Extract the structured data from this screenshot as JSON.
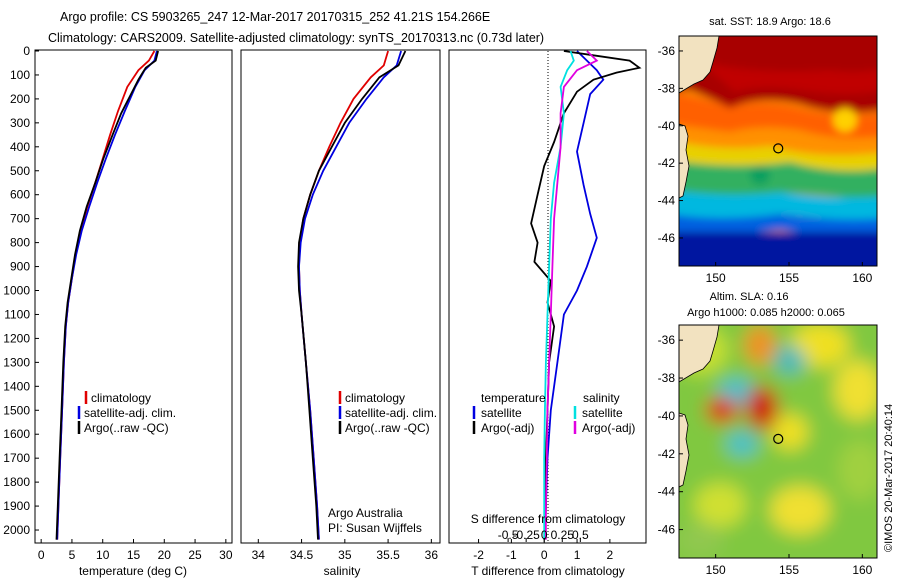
{
  "header": {
    "line1": "Argo profile: CS 5903265_247 12-Mar-2017 20170315_252 41.21S 154.266E",
    "line2": "Climatology: CARS2009. Satellite-adjusted climatology: synTS_20170313.nc (0.73d later)"
  },
  "colors": {
    "climatology": "#e00000",
    "satellite": "#0000e0",
    "argo": "#000000",
    "sat_s": "#00e0e0",
    "argo_adj_s": "#e000e0"
  },
  "chart_data": [
    {
      "type": "line",
      "id": "temperature",
      "xlabel": "temperature (deg C)",
      "ylabel": "",
      "xlim": [
        -1,
        31
      ],
      "ylim": [
        2050,
        0
      ],
      "xticks": [
        "0",
        "5",
        "10",
        "15",
        "20",
        "25",
        "30"
      ],
      "yticks": [
        "0",
        "100",
        "200",
        "300",
        "400",
        "500",
        "600",
        "700",
        "800",
        "900",
        "1000",
        "1100",
        "1200",
        "1300",
        "1400",
        "1500",
        "1600",
        "1700",
        "1800",
        "1900",
        "2000"
      ],
      "legend": [
        "climatology",
        "satellite-adj. clim.",
        "Argo(..raw -QC)"
      ],
      "series": [
        {
          "name": "climatology",
          "color": "#e00000",
          "points": [
            [
              18.4,
              0
            ],
            [
              17.5,
              40
            ],
            [
              15.8,
              80
            ],
            [
              14.0,
              150
            ],
            [
              12.5,
              250
            ],
            [
              11.2,
              350
            ],
            [
              10.0,
              450
            ],
            [
              8.8,
              550
            ],
            [
              7.5,
              650
            ],
            [
              6.4,
              750
            ],
            [
              5.6,
              850
            ],
            [
              5.0,
              950
            ],
            [
              4.4,
              1050
            ],
            [
              4.0,
              1150
            ],
            [
              3.7,
              1300
            ],
            [
              3.4,
              1500
            ],
            [
              3.1,
              1700
            ],
            [
              2.8,
              1900
            ],
            [
              2.6,
              2040
            ]
          ]
        },
        {
          "name": "satellite-adj. clim.",
          "color": "#0000e0",
          "points": [
            [
              18.8,
              0
            ],
            [
              18.4,
              40
            ],
            [
              16.8,
              80
            ],
            [
              15.3,
              150
            ],
            [
              13.6,
              250
            ],
            [
              12.0,
              350
            ],
            [
              10.5,
              450
            ],
            [
              9.1,
              550
            ],
            [
              7.8,
              650
            ],
            [
              6.6,
              750
            ],
            [
              5.7,
              850
            ],
            [
              5.0,
              950
            ],
            [
              4.4,
              1050
            ],
            [
              4.0,
              1150
            ],
            [
              3.7,
              1300
            ],
            [
              3.4,
              1500
            ],
            [
              3.1,
              1700
            ],
            [
              2.8,
              1900
            ],
            [
              2.6,
              2040
            ]
          ]
        },
        {
          "name": "Argo(..raw -QC)",
          "color": "#000000",
          "points": [
            [
              19.0,
              0
            ],
            [
              18.6,
              40
            ],
            [
              17.0,
              70
            ],
            [
              16.5,
              90
            ],
            [
              15.8,
              120
            ],
            [
              14.6,
              180
            ],
            [
              13.0,
              260
            ],
            [
              11.6,
              350
            ],
            [
              10.1,
              450
            ],
            [
              8.8,
              550
            ],
            [
              7.4,
              650
            ],
            [
              6.3,
              750
            ],
            [
              5.5,
              850
            ],
            [
              4.9,
              950
            ],
            [
              4.3,
              1050
            ],
            [
              3.9,
              1150
            ],
            [
              3.6,
              1300
            ],
            [
              3.3,
              1500
            ],
            [
              3.0,
              1700
            ],
            [
              2.7,
              1900
            ],
            [
              2.5,
              2040
            ]
          ]
        }
      ]
    },
    {
      "type": "line",
      "id": "salinity",
      "xlabel": "salinity",
      "xlim": [
        33.8,
        36.1
      ],
      "ylim": [
        2050,
        0
      ],
      "xticks": [
        "34",
        "34.5",
        "35",
        "35.5",
        "36"
      ],
      "legend": [
        "climatology",
        "satellite-adj. clim.",
        "Argo(..raw -QC)"
      ],
      "annotation": [
        "Argo Australia",
        "PI: Susan Wijffels"
      ],
      "series": [
        {
          "name": "climatology",
          "color": "#e00000",
          "points": [
            [
              35.5,
              0
            ],
            [
              35.45,
              60
            ],
            [
              35.3,
              110
            ],
            [
              35.1,
              200
            ],
            [
              34.95,
              300
            ],
            [
              34.82,
              400
            ],
            [
              34.7,
              500
            ],
            [
              34.6,
              600
            ],
            [
              34.52,
              700
            ],
            [
              34.48,
              800
            ],
            [
              34.47,
              900
            ],
            [
              34.48,
              1000
            ],
            [
              34.5,
              1100
            ],
            [
              34.55,
              1300
            ],
            [
              34.6,
              1500
            ],
            [
              34.64,
              1700
            ],
            [
              34.68,
              1900
            ],
            [
              34.7,
              2040
            ]
          ]
        },
        {
          "name": "satellite-adj. clim.",
          "color": "#0000e0",
          "points": [
            [
              35.65,
              0
            ],
            [
              35.6,
              60
            ],
            [
              35.45,
              110
            ],
            [
              35.25,
              200
            ],
            [
              35.05,
              300
            ],
            [
              34.9,
              400
            ],
            [
              34.75,
              500
            ],
            [
              34.63,
              600
            ],
            [
              34.54,
              700
            ],
            [
              34.49,
              800
            ],
            [
              34.47,
              900
            ],
            [
              34.48,
              1000
            ],
            [
              34.5,
              1100
            ],
            [
              34.55,
              1300
            ],
            [
              34.6,
              1500
            ],
            [
              34.64,
              1700
            ],
            [
              34.68,
              1900
            ],
            [
              34.7,
              2040
            ]
          ]
        },
        {
          "name": "Argo(..raw -QC)",
          "color": "#000000",
          "points": [
            [
              35.7,
              0
            ],
            [
              35.62,
              60
            ],
            [
              35.4,
              110
            ],
            [
              35.2,
              200
            ],
            [
              35.0,
              300
            ],
            [
              34.85,
              400
            ],
            [
              34.7,
              500
            ],
            [
              34.6,
              600
            ],
            [
              34.52,
              700
            ],
            [
              34.47,
              800
            ],
            [
              34.46,
              900
            ],
            [
              34.47,
              1000
            ],
            [
              34.5,
              1100
            ],
            [
              34.55,
              1300
            ],
            [
              34.59,
              1500
            ],
            [
              34.63,
              1700
            ],
            [
              34.67,
              1900
            ],
            [
              34.69,
              2040
            ]
          ]
        }
      ]
    },
    {
      "type": "line",
      "id": "difference",
      "xlabel": "T difference from climatology",
      "xlabel2": "S difference from climatology",
      "xlim": [
        -2.9,
        3.1
      ],
      "ylim": [
        2050,
        0
      ],
      "xticks": [
        "-2",
        "-1",
        "0",
        "1",
        "2"
      ],
      "x2ticks": [
        "-0.5",
        "-0.25",
        "0",
        "0.25",
        "0.5"
      ],
      "legend_t_title": "temperature",
      "legend_s_title": "salinity",
      "legend_t": [
        "satellite",
        "Argo(-adj)"
      ],
      "legend_s": [
        "satellite",
        "Argo(-adj)"
      ],
      "series": [
        {
          "name": "T satellite",
          "color": "#0000e0",
          "points": [
            [
              1.0,
              0
            ],
            [
              1.3,
              40
            ],
            [
              1.6,
              80
            ],
            [
              1.8,
              120
            ],
            [
              1.4,
              180
            ],
            [
              1.2,
              300
            ],
            [
              1.0,
              420
            ],
            [
              1.2,
              560
            ],
            [
              1.4,
              680
            ],
            [
              1.6,
              780
            ],
            [
              1.3,
              900
            ],
            [
              1.0,
              1000
            ],
            [
              0.6,
              1100
            ],
            [
              0.4,
              1300
            ],
            [
              0.2,
              1500
            ],
            [
              0.1,
              1700
            ],
            [
              0.05,
              1900
            ],
            [
              0,
              2040
            ]
          ]
        },
        {
          "name": "T Argo(-adj)",
          "color": "#000000",
          "points": [
            [
              0.6,
              0
            ],
            [
              1.6,
              20
            ],
            [
              2.6,
              40
            ],
            [
              2.9,
              70
            ],
            [
              2.2,
              90
            ],
            [
              1.5,
              120
            ],
            [
              1.0,
              170
            ],
            [
              0.6,
              260
            ],
            [
              0.3,
              380
            ],
            [
              0.0,
              480
            ],
            [
              -0.2,
              600
            ],
            [
              -0.4,
              720
            ],
            [
              -0.2,
              800
            ],
            [
              -0.3,
              880
            ],
            [
              0.2,
              960
            ],
            [
              0.1,
              1050
            ],
            [
              0.3,
              1150
            ],
            [
              0.15,
              1300
            ],
            [
              0.1,
              1500
            ],
            [
              0.05,
              1700
            ],
            [
              0.05,
              1900
            ],
            [
              0.02,
              2040
            ]
          ]
        },
        {
          "name": "S satellite",
          "color": "#00e0e0",
          "points": [
            [
              0.8,
              0
            ],
            [
              0.9,
              40
            ],
            [
              0.7,
              80
            ],
            [
              0.5,
              150
            ],
            [
              0.6,
              260
            ],
            [
              0.5,
              400
            ],
            [
              0.3,
              550
            ],
            [
              0.2,
              700
            ],
            [
              0.15,
              900
            ],
            [
              0.1,
              1100
            ],
            [
              0.05,
              1300
            ],
            [
              0.02,
              1500
            ],
            [
              0,
              1700
            ],
            [
              0,
              1900
            ],
            [
              0,
              2040
            ]
          ]
        },
        {
          "name": "S Argo(-adj)",
          "color": "#e000e0",
          "points": [
            [
              1.3,
              0
            ],
            [
              1.6,
              40
            ],
            [
              1.0,
              80
            ],
            [
              0.6,
              150
            ],
            [
              0.5,
              260
            ],
            [
              0.5,
              400
            ],
            [
              0.4,
              550
            ],
            [
              0.3,
              700
            ],
            [
              0.25,
              900
            ],
            [
              0.2,
              1100
            ],
            [
              0.15,
              1300
            ],
            [
              0.1,
              1500
            ],
            [
              0.08,
              1700
            ],
            [
              0.05,
              1900
            ],
            [
              0.05,
              2040
            ]
          ]
        }
      ]
    },
    {
      "type": "heatmap",
      "id": "sst_map",
      "title": "sat. SST: 18.9 Argo: 18.6",
      "xlim": [
        147.5,
        161
      ],
      "ylim": [
        -47.5,
        -35.2
      ],
      "xticks": [
        "150",
        "155",
        "160"
      ],
      "yticks": [
        "-36",
        "-38",
        "-40",
        "-42",
        "-44",
        "-46"
      ],
      "argo_position": [
        154.266,
        -41.21
      ]
    },
    {
      "type": "heatmap",
      "id": "sla_map",
      "title_line1": "Altim. SLA: 0.16",
      "title_line2": "Argo h1000: 0.085 h2000: 0.065",
      "xlim": [
        147.5,
        161
      ],
      "ylim": [
        -47.5,
        -35.2
      ],
      "xticks": [
        "150",
        "155",
        "160"
      ],
      "yticks": [
        "-36",
        "-38",
        "-40",
        "-42",
        "-44",
        "-46"
      ],
      "argo_position": [
        154.266,
        -41.21
      ]
    }
  ],
  "credit": "©IMOS 20-Mar-2017 20:40:14"
}
